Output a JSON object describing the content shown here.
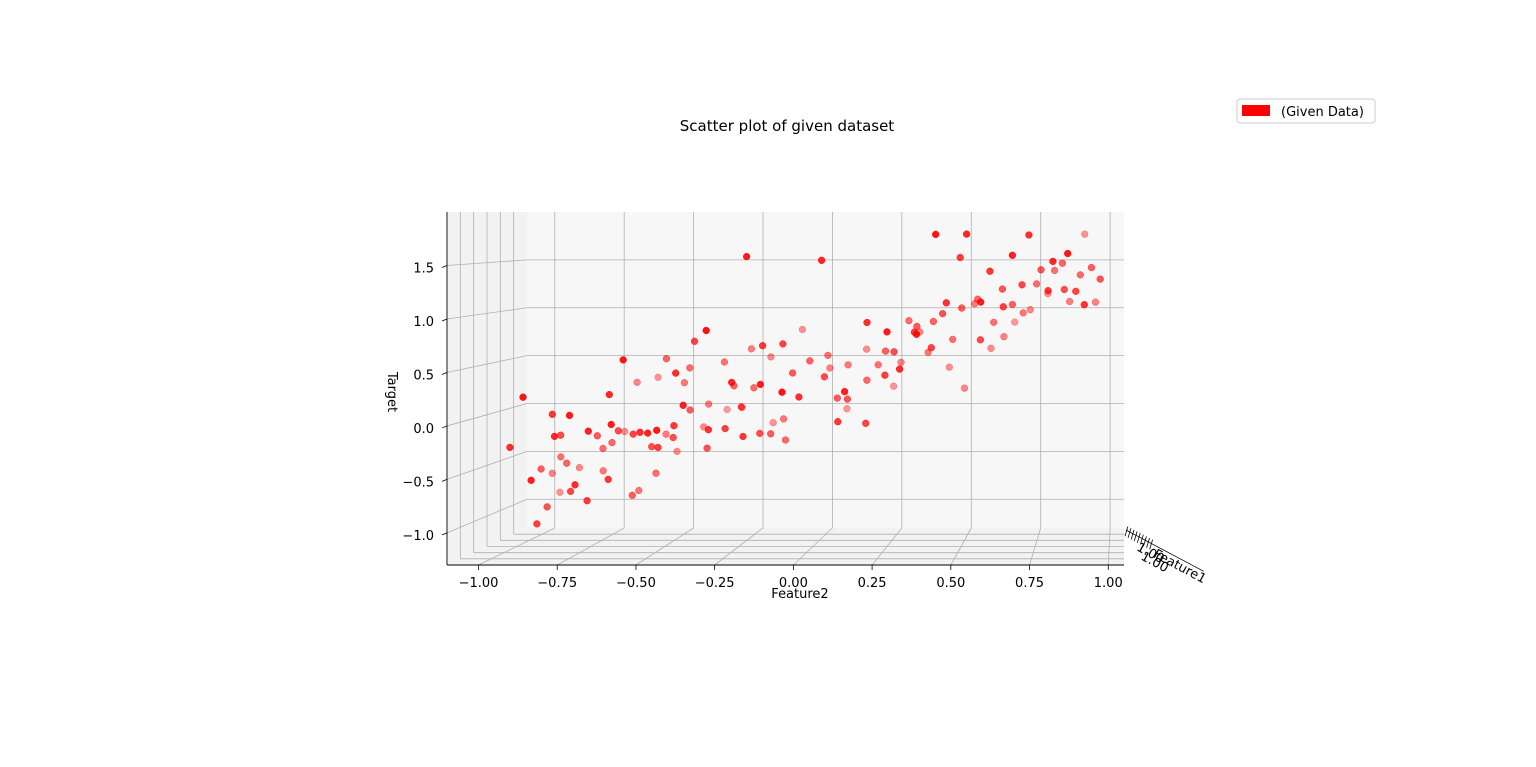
{
  "chart_data": {
    "type": "scatter",
    "title": "Scatter plot of given dataset",
    "xlabel": "Feature1",
    "ylabel": "Feature2",
    "zlabel": "Target",
    "legend": {
      "entries": [
        "(Given Data)"
      ],
      "placement": "top-right"
    },
    "grid": true,
    "y_ticks": [
      "−1.00",
      "−0.75",
      "−0.50",
      "−0.25",
      "0.00",
      "0.25",
      "0.50",
      "0.75",
      "1.00"
    ],
    "z_ticks": [
      "−1.0",
      "−0.5",
      "0.0",
      "0.5",
      "1.0",
      "1.5"
    ],
    "x_tick_text": "1.00",
    "ylim": [
      -1.1,
      1.05
    ],
    "zlim": [
      -1.3,
      2.0
    ],
    "series": [
      {
        "name": "(Given Data)",
        "color": "#ff0000",
        "points": [
          [
            0.21,
            -0.95,
            -0.25
          ],
          [
            0.55,
            -0.93,
            -0.55
          ],
          [
            0.92,
            -0.96,
            -0.9
          ],
          [
            0.78,
            -0.95,
            -0.66
          ],
          [
            0.33,
            -0.89,
            -1.02
          ],
          [
            0.66,
            -0.89,
            -0.46
          ],
          [
            0.47,
            -0.89,
            -0.9
          ],
          [
            0.84,
            -0.87,
            -0.62
          ],
          [
            0.12,
            -0.86,
            -0.54
          ],
          [
            0.58,
            -0.85,
            -0.5
          ],
          [
            0.05,
            -0.87,
            0.26
          ],
          [
            0.41,
            -0.83,
            -0.18
          ],
          [
            0.29,
            -0.83,
            0.05
          ],
          [
            0.19,
            -0.8,
            -0.14
          ],
          [
            0.38,
            -0.79,
            -0.72
          ],
          [
            0.73,
            -0.76,
            -0.62
          ],
          [
            0.64,
            -0.74,
            -0.37
          ],
          [
            0.22,
            -0.74,
            -0.61
          ],
          [
            0.51,
            -0.73,
            -0.21
          ],
          [
            0.88,
            -0.72,
            -0.26
          ],
          [
            0.31,
            -0.72,
            -0.79
          ],
          [
            0.09,
            -0.73,
            0.08
          ],
          [
            0.6,
            -0.7,
            -0.3
          ],
          [
            0.14,
            -0.68,
            -0.08
          ],
          [
            0.81,
            -0.66,
            0.26
          ],
          [
            0.42,
            -0.64,
            -0.14
          ],
          [
            0.26,
            -0.64,
            -0.57
          ],
          [
            0.7,
            -0.63,
            -0.81
          ],
          [
            0.55,
            -0.62,
            -0.81
          ],
          [
            0.18,
            -0.62,
            0.26
          ],
          [
            0.92,
            -0.61,
            0.29
          ],
          [
            0.11,
            -0.6,
            -0.01
          ],
          [
            0.37,
            -0.58,
            -0.16
          ],
          [
            0.65,
            -0.56,
            -0.62
          ],
          [
            0.05,
            -0.55,
            0.61
          ],
          [
            0.77,
            -0.55,
            -0.26
          ],
          [
            0.48,
            -0.54,
            -0.31
          ],
          [
            0.23,
            -0.53,
            -0.11
          ],
          [
            0.86,
            -0.53,
            -0.46
          ],
          [
            0.58,
            -0.51,
            0.54
          ],
          [
            0.15,
            -0.49,
            -0.1
          ],
          [
            0.33,
            -0.49,
            -0.28
          ],
          [
            0.74,
            -0.48,
            0.27
          ],
          [
            0.44,
            -0.46,
            -0.21
          ],
          [
            0.09,
            -0.45,
            -0.06
          ],
          [
            0.63,
            -0.44,
            0.44
          ],
          [
            0.29,
            -0.43,
            -0.06
          ],
          [
            0.83,
            -0.43,
            -0.2
          ],
          [
            0.53,
            -0.42,
            0.04
          ],
          [
            0.21,
            -0.41,
            0.46
          ],
          [
            0.71,
            -0.39,
            0.06
          ],
          [
            0.39,
            -0.38,
            0.74
          ],
          [
            0.12,
            -0.37,
            0.17
          ],
          [
            0.95,
            -0.37,
            -0.05
          ],
          [
            0.46,
            -0.35,
            -0.32
          ],
          [
            0.68,
            -0.33,
            0.49
          ],
          [
            0.25,
            -0.31,
            -0.09
          ],
          [
            0.86,
            -0.3,
            -0.01
          ],
          [
            0.58,
            -0.28,
            0.27
          ],
          [
            0.02,
            -0.28,
            0.89
          ],
          [
            0.34,
            -0.27,
            -0.1
          ],
          [
            0.76,
            -0.25,
            0.61
          ],
          [
            0.49,
            -0.24,
            0.08
          ],
          [
            0.16,
            -0.22,
            0.38
          ],
          [
            0.63,
            -0.22,
            0.24
          ],
          [
            0.92,
            -0.2,
            -0.18
          ],
          [
            0.27,
            -0.2,
            -0.16
          ],
          [
            0.81,
            -0.19,
            0.52
          ],
          [
            0.44,
            -0.17,
            -0.17
          ],
          [
            0.08,
            -0.16,
            1.58
          ],
          [
            0.55,
            -0.15,
            -0.2
          ],
          [
            0.3,
            -0.14,
            0.71
          ],
          [
            0.71,
            -0.13,
            -0.09
          ],
          [
            0.11,
            -0.12,
            0.37
          ],
          [
            0.62,
            -0.11,
            -0.28
          ],
          [
            0.88,
            -0.09,
            0.79
          ],
          [
            0.35,
            -0.08,
            0.72
          ],
          [
            0.51,
            -0.07,
            0.41
          ],
          [
            0.03,
            -0.04,
            0.31
          ],
          [
            0.57,
            -0.02,
            0.52
          ],
          [
            0.22,
            -0.01,
            0.23
          ],
          [
            0.79,
            0.02,
            0.41
          ],
          [
            0.66,
            0.03,
            0.56
          ],
          [
            0.41,
            0.05,
            0.39
          ],
          [
            0.94,
            0.06,
            -0.04
          ],
          [
            0.17,
            0.07,
            1.54
          ],
          [
            0.52,
            0.08,
            0.16
          ],
          [
            0.74,
            0.09,
            0.45
          ],
          [
            0.28,
            0.11,
            -0.02
          ],
          [
            0.47,
            0.12,
            0.16
          ],
          [
            0.86,
            0.14,
            0.59
          ],
          [
            0.12,
            0.15,
            0.3
          ],
          [
            0.61,
            0.17,
            0.32
          ],
          [
            0.39,
            0.19,
            -0.06
          ],
          [
            0.69,
            0.2,
            0.46
          ],
          [
            0.24,
            0.21,
            0.94
          ],
          [
            0.91,
            0.23,
            0.2
          ],
          [
            0.55,
            0.24,
            0.62
          ],
          [
            0.33,
            0.26,
            0.42
          ],
          [
            0.78,
            0.27,
            0.47
          ],
          [
            0.44,
            0.28,
            0.63
          ],
          [
            0.08,
            0.29,
            0.87
          ],
          [
            0.65,
            0.31,
            0.91
          ],
          [
            0.2,
            0.32,
            0.5
          ],
          [
            0.84,
            0.33,
            0.77
          ],
          [
            0.51,
            0.35,
            0.87
          ],
          [
            0.3,
            0.36,
            0.84
          ],
          [
            0.72,
            0.37,
            0.58
          ],
          [
            0.14,
            0.38,
            0.84
          ],
          [
            0.58,
            0.4,
            0.91
          ],
          [
            0.37,
            0.41,
            0.68
          ],
          [
            0.89,
            0.43,
            0.4
          ],
          [
            0.47,
            0.44,
            1.0
          ],
          [
            0.03,
            0.45,
            1.79
          ],
          [
            0.66,
            0.46,
            0.72
          ],
          [
            0.23,
            0.47,
            1.13
          ],
          [
            0.81,
            0.49,
            0.2
          ],
          [
            0.53,
            0.5,
            1.05
          ],
          [
            0.31,
            0.51,
            1.56
          ],
          [
            0.74,
            0.53,
            1.07
          ],
          [
            0.17,
            0.54,
            1.79
          ],
          [
            0.6,
            0.55,
            1.13
          ],
          [
            0.42,
            0.57,
            0.75
          ],
          [
            0.86,
            0.58,
            0.6
          ],
          [
            0.09,
            0.59,
            1.15
          ],
          [
            0.68,
            0.6,
            0.89
          ],
          [
            0.27,
            0.61,
            1.43
          ],
          [
            0.78,
            0.63,
            0.73
          ],
          [
            0.49,
            0.64,
            1.24
          ],
          [
            0.35,
            0.65,
            1.08
          ],
          [
            0.93,
            0.66,
            0.86
          ],
          [
            0.57,
            0.67,
            1.08
          ],
          [
            0.13,
            0.69,
            1.59
          ],
          [
            0.72,
            0.7,
            0.98
          ],
          [
            0.4,
            0.71,
            1.29
          ],
          [
            0.83,
            0.72,
            1.0
          ],
          [
            0.22,
            0.74,
            1.78
          ],
          [
            0.63,
            0.75,
            1.28
          ],
          [
            0.5,
            0.77,
            1.43
          ],
          [
            0.88,
            0.78,
            1.16
          ],
          [
            0.3,
            0.8,
            1.24
          ],
          [
            0.69,
            0.81,
            1.41
          ],
          [
            0.16,
            0.82,
            1.53
          ],
          [
            0.58,
            0.84,
            1.49
          ],
          [
            0.44,
            0.85,
            1.24
          ],
          [
            0.77,
            0.86,
            1.09
          ],
          [
            0.06,
            0.87,
            1.61
          ],
          [
            0.36,
            0.89,
            1.23
          ],
          [
            0.64,
            0.9,
            1.37
          ],
          [
            0.92,
            0.91,
            1.77
          ],
          [
            0.25,
            0.92,
            1.11
          ],
          [
            0.53,
            0.94,
            1.45
          ],
          [
            0.8,
            0.95,
            1.08
          ],
          [
            0.47,
            0.97,
            1.34
          ]
        ]
      }
    ]
  }
}
